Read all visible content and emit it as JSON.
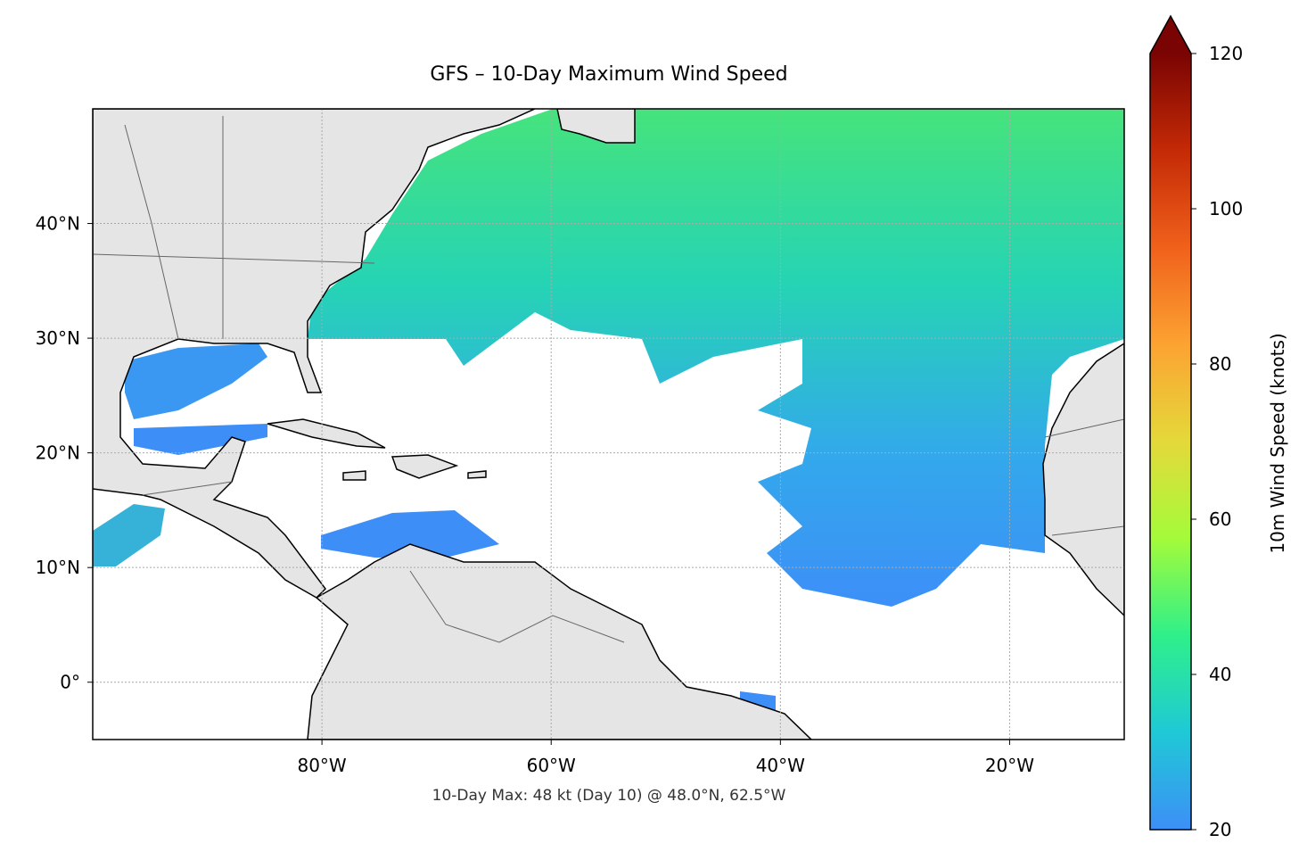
{
  "map": {
    "title": "GFS – 10-Day Maximum Wind Speed",
    "annotation": "10-Day Max: 48 kt (Day 10) @ 48.0°N, 62.5°W",
    "xlim": [
      -100,
      -10
    ],
    "ylim": [
      -5,
      50
    ],
    "xticks": [
      {
        "value": -80,
        "label": "80°W"
      },
      {
        "value": -60,
        "label": "60°W"
      },
      {
        "value": -40,
        "label": "40°W"
      },
      {
        "value": -20,
        "label": "20°W"
      }
    ],
    "yticks": [
      {
        "value": 0,
        "label": "0°"
      },
      {
        "value": 10,
        "label": "10°N"
      },
      {
        "value": 20,
        "label": "20°N"
      },
      {
        "value": 30,
        "label": "30°N"
      },
      {
        "value": 40,
        "label": "40°N"
      }
    ],
    "grid": true
  },
  "colorbar": {
    "label": "10m Wind Speed (knots)",
    "lim": [
      20,
      120
    ],
    "ticks": [
      20,
      40,
      60,
      80,
      100,
      120
    ],
    "extend": "max",
    "colors": [
      "#3d8ff7",
      "#1fc9d6",
      "#2ef08a",
      "#a4fb3a",
      "#e4d93a",
      "#fca332",
      "#f0611b",
      "#c42a06",
      "#7a0403"
    ]
  }
}
